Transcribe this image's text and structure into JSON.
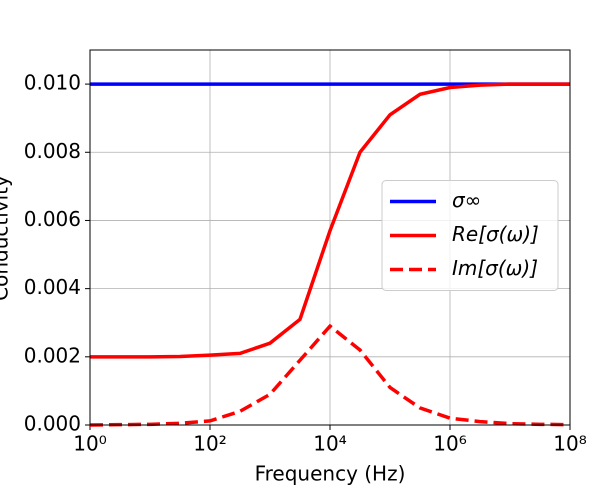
{
  "chart_data": {
    "type": "line",
    "x_label": "Frequency (Hz)",
    "y_label": "Conductivity",
    "x": [
      1,
      3.16,
      10,
      31.6,
      100,
      316,
      1000,
      3162,
      10000,
      31623,
      100000,
      316228,
      1000000,
      3162278,
      10000000,
      31622777,
      100000000
    ],
    "series": [
      {
        "name": "σ∞",
        "color": "#0000ff",
        "dash": false,
        "values": [
          0.01,
          0.01,
          0.01,
          0.01,
          0.01,
          0.01,
          0.01,
          0.01,
          0.01,
          0.01,
          0.01,
          0.01,
          0.01,
          0.01,
          0.01,
          0.01,
          0.01
        ]
      },
      {
        "name": "Re[σ(ω)]",
        "color": "#ff0000",
        "dash": false,
        "values": [
          0.002,
          0.002,
          0.002,
          0.00201,
          0.00205,
          0.0021,
          0.0024,
          0.0031,
          0.0057,
          0.008,
          0.0091,
          0.0097,
          0.0099,
          0.00997,
          0.01,
          0.01,
          0.01
        ]
      },
      {
        "name": "Im[σ(ω)]",
        "color": "#ff0000",
        "dash": true,
        "values": [
          0,
          1e-05,
          2e-05,
          5e-05,
          0.00012,
          0.0004,
          0.0009,
          0.0019,
          0.0029,
          0.0022,
          0.0011,
          0.0005,
          0.0002,
          0.0001,
          4e-05,
          2e-05,
          1e-05
        ]
      }
    ],
    "xlog": true,
    "xlim": [
      1,
      100000000
    ],
    "xticks": [
      {
        "value": 1,
        "label": "10⁰"
      },
      {
        "value": 100,
        "label": "10²"
      },
      {
        "value": 10000,
        "label": "10⁴"
      },
      {
        "value": 1000000,
        "label": "10⁶"
      },
      {
        "value": 100000000,
        "label": "10⁸"
      }
    ],
    "ylim": [
      0,
      0.011
    ],
    "yticks": [
      {
        "value": 0,
        "label": "0.000"
      },
      {
        "value": 0.002,
        "label": "0.002"
      },
      {
        "value": 0.004,
        "label": "0.004"
      },
      {
        "value": 0.006,
        "label": "0.006"
      },
      {
        "value": 0.008,
        "label": "0.008"
      },
      {
        "value": 0.01,
        "label": "0.010"
      }
    ],
    "grid": true,
    "legend": "center right"
  }
}
